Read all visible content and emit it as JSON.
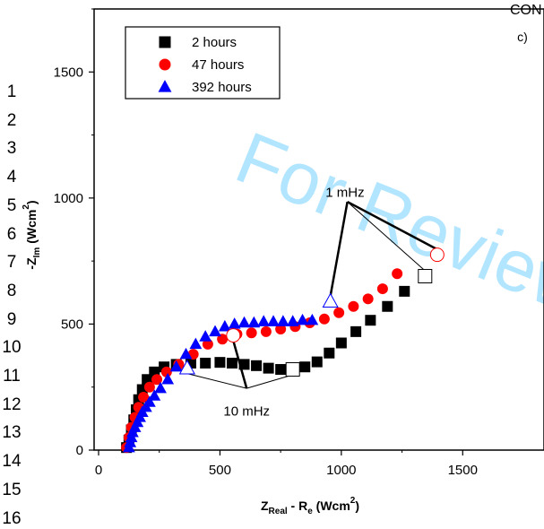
{
  "page": {
    "watermark": "For Review",
    "corner_text": "CON",
    "line_numbers": [
      "1",
      "2",
      "3",
      "4",
      "5",
      "6",
      "7",
      "8",
      "9",
      "10",
      "11",
      "12",
      "13",
      "14",
      "15",
      "16"
    ]
  },
  "chart_data": {
    "type": "scatter",
    "panel_label": "c)",
    "xlabel": "Z_Real - R_e (Wcm^2)",
    "ylabel": "-Z_Im (Wcm^2)",
    "xlim": [
      0,
      1750
    ],
    "ylim": [
      0,
      1750
    ],
    "xticks": [
      0,
      500,
      1000,
      1500
    ],
    "yticks": [
      0,
      500,
      1000,
      1500
    ],
    "grid": false,
    "legend_position": "top-left",
    "series": [
      {
        "name": "2 hours",
        "marker": "square",
        "color": "#000000",
        "x": [
          115,
          125,
          135,
          145,
          155,
          165,
          180,
          200,
          230,
          270,
          320,
          380,
          440,
          500,
          550,
          600,
          650,
          700,
          750,
          800,
          850,
          900,
          950,
          1000,
          1060,
          1120,
          1190,
          1260
        ],
        "y": [
          10,
          40,
          80,
          120,
          160,
          200,
          240,
          280,
          310,
          330,
          340,
          345,
          345,
          348,
          345,
          340,
          335,
          325,
          320,
          320,
          330,
          350,
          385,
          425,
          470,
          515,
          570,
          630
        ]
      },
      {
        "name": "47 hours",
        "marker": "circle",
        "color": "#ff0000",
        "x": [
          115,
          125,
          135,
          150,
          165,
          185,
          210,
          240,
          280,
          330,
          390,
          450,
          510,
          570,
          630,
          690,
          750,
          810,
          870,
          930,
          990,
          1050,
          1110,
          1170,
          1230
        ],
        "y": [
          10,
          50,
          90,
          130,
          170,
          210,
          250,
          280,
          310,
          340,
          380,
          420,
          440,
          460,
          465,
          470,
          480,
          490,
          505,
          520,
          545,
          570,
          600,
          640,
          700
        ]
      },
      {
        "name": "392 hours",
        "marker": "triangle",
        "color": "#0000ff",
        "x": [
          125,
          130,
          135,
          140,
          150,
          160,
          170,
          180,
          195,
          210,
          230,
          255,
          285,
          320,
          360,
          400,
          440,
          480,
          520,
          560,
          600,
          640,
          680,
          720,
          760,
          800,
          840,
          880
        ],
        "y": [
          10,
          30,
          50,
          70,
          90,
          110,
          130,
          150,
          170,
          190,
          215,
          245,
          280,
          330,
          380,
          420,
          450,
          470,
          490,
          500,
          505,
          505,
          510,
          510,
          510,
          510,
          515,
          515
        ]
      }
    ],
    "highlighted_points": [
      {
        "series": "2 hours",
        "freq": "10 mHz",
        "x": 800,
        "y": 320
      },
      {
        "series": "2 hours",
        "freq": "1 mHz",
        "x": 1345,
        "y": 690
      },
      {
        "series": "47 hours",
        "freq": "10 mHz",
        "x": 555,
        "y": 455
      },
      {
        "series": "47 hours",
        "freq": "1 mHz",
        "x": 1395,
        "y": 775
      },
      {
        "series": "392 hours",
        "freq": "10 mHz",
        "x": 365,
        "y": 325
      },
      {
        "series": "392 hours",
        "freq": "1 mHz",
        "x": 955,
        "y": 590
      }
    ],
    "annotations": [
      {
        "text": "10 mHz",
        "x": 610,
        "y": 215
      },
      {
        "text": "1 mHz",
        "x": 1015,
        "y": 1005
      }
    ]
  }
}
